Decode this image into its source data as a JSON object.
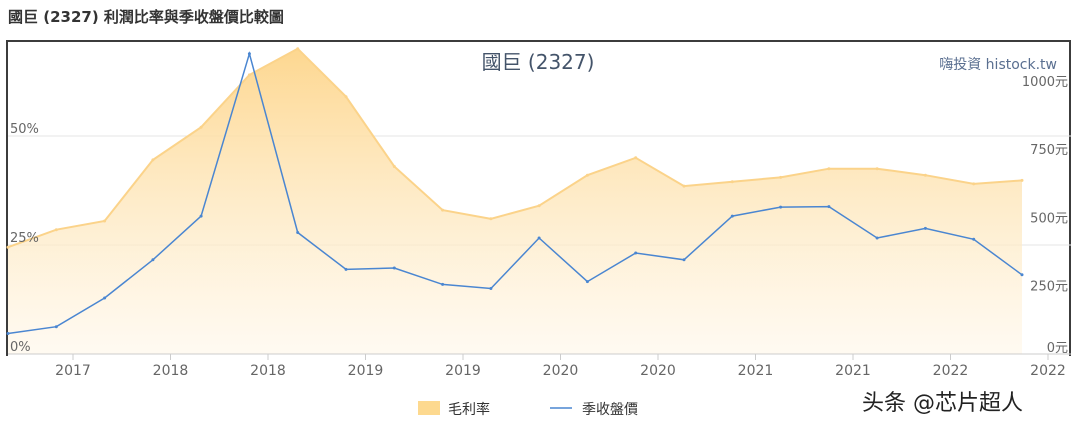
{
  "page_title": "國巨 (2327) 利潤比率與季收盤價比較圖",
  "watermark": "头条 @芯片超人",
  "chart_data": {
    "type": "area",
    "title": "國巨 (2327)",
    "source_label": "嗨投資 histock.tw",
    "x_tick_labels": [
      "2017",
      "2018",
      "2018",
      "2019",
      "2019",
      "2020",
      "2020",
      "2021",
      "2021",
      "2022",
      "2022"
    ],
    "left_axis": {
      "ticks": [
        "0%",
        "25%",
        "50%"
      ],
      "values": [
        0,
        25,
        50
      ],
      "range": [
        0,
        72
      ]
    },
    "right_axis": {
      "ticks": [
        "0元",
        "250元",
        "500元",
        "750元",
        "1000元"
      ],
      "values": [
        0,
        250,
        500,
        750,
        1000
      ],
      "range": [
        0,
        1150
      ]
    },
    "legend_position": "bottom",
    "series": [
      {
        "name": "毛利率",
        "type": "area",
        "axis": "left",
        "color": "#fdd98f",
        "values": [
          24.5,
          28.5,
          30.5,
          44.5,
          52,
          64,
          70,
          59,
          43,
          33,
          31,
          34,
          41,
          45,
          38.5,
          39.5,
          40.5,
          42.5,
          42.5,
          41,
          39,
          39.8
        ]
      },
      {
        "name": "季收盤價",
        "type": "line",
        "axis": "right",
        "color": "#4a86d1",
        "values": [
          75,
          100,
          205,
          345,
          505,
          1100,
          445,
          310,
          315,
          255,
          240,
          425,
          265,
          370,
          345,
          505,
          538,
          540,
          425,
          460,
          420,
          290
        ]
      }
    ]
  }
}
